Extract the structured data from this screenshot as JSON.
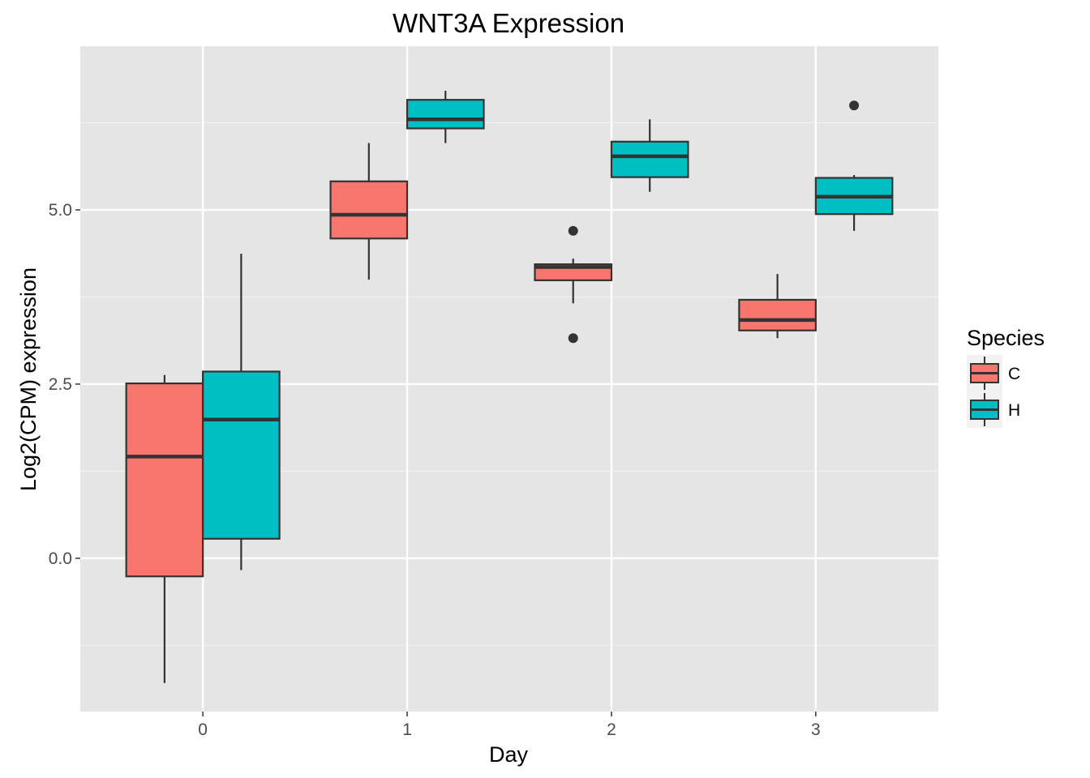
{
  "chart_data": {
    "type": "boxplot",
    "title": "WNT3A Expression",
    "xlabel": "Day",
    "ylabel": "Log2(CPM) expression",
    "categories": [
      "0",
      "1",
      "2",
      "3"
    ],
    "ylim": [
      -2.2,
      7.35
    ],
    "yticks": [
      0.0,
      2.5,
      5.0
    ],
    "ytick_labels": [
      "0.0",
      "2.5",
      "5.0"
    ],
    "grid": true,
    "legend": {
      "title": "Species",
      "position": "right"
    },
    "series": [
      {
        "name": "C",
        "color": "#F8766D",
        "boxes": [
          {
            "x": "0",
            "whisker_low": -1.79,
            "q1": -0.26,
            "median": 1.46,
            "q3": 2.51,
            "whisker_high": 2.63,
            "outliers": []
          },
          {
            "x": "1",
            "whisker_low": 4.0,
            "q1": 4.59,
            "median": 4.93,
            "q3": 5.41,
            "whisker_high": 5.96,
            "outliers": []
          },
          {
            "x": "2",
            "whisker_low": 3.66,
            "q1": 3.99,
            "median": 4.18,
            "q3": 4.22,
            "whisker_high": 4.3,
            "outliers": [
              4.7,
              3.16
            ]
          },
          {
            "x": "3",
            "whisker_low": 3.16,
            "q1": 3.27,
            "median": 3.42,
            "q3": 3.71,
            "whisker_high": 4.08,
            "outliers": []
          }
        ]
      },
      {
        "name": "H",
        "color": "#00BFC4",
        "boxes": [
          {
            "x": "0",
            "whisker_low": -0.17,
            "q1": 0.28,
            "median": 1.99,
            "q3": 2.68,
            "whisker_high": 4.37,
            "outliers": []
          },
          {
            "x": "1",
            "whisker_low": 5.96,
            "q1": 6.17,
            "median": 6.3,
            "q3": 6.58,
            "whisker_high": 6.71,
            "outliers": []
          },
          {
            "x": "2",
            "whisker_low": 5.26,
            "q1": 5.47,
            "median": 5.77,
            "q3": 5.98,
            "whisker_high": 6.3,
            "outliers": []
          },
          {
            "x": "3",
            "whisker_low": 4.7,
            "q1": 4.94,
            "median": 5.19,
            "q3": 5.46,
            "whisker_high": 5.5,
            "outliers": [
              6.5
            ]
          }
        ]
      }
    ]
  }
}
